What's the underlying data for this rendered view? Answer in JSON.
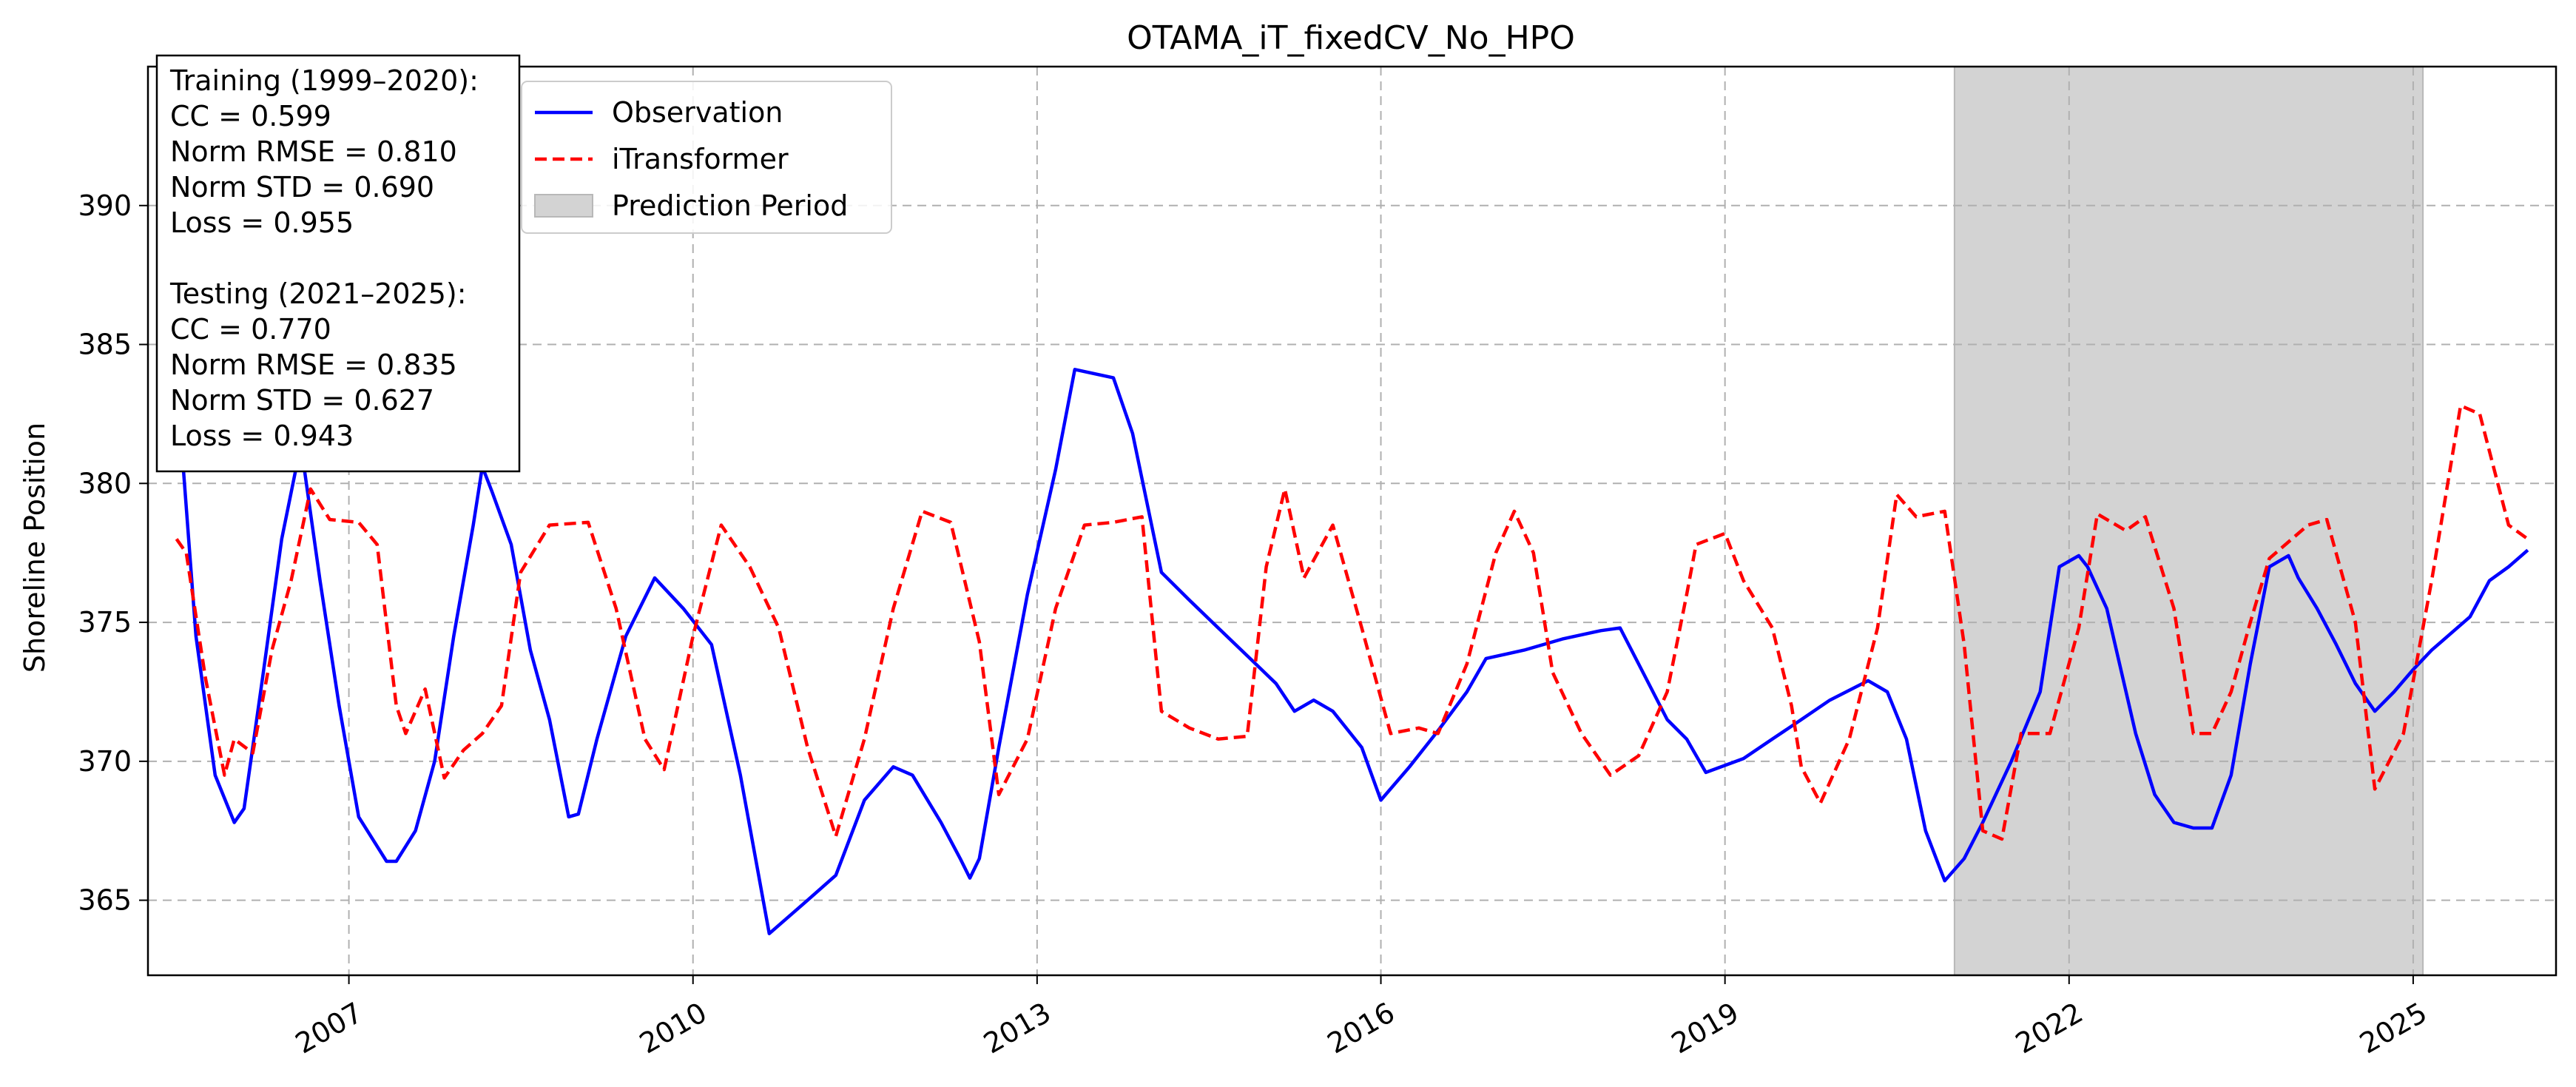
{
  "chart_data": {
    "type": "line",
    "title": "OTAMA_iT_fixedCV_No_HPO",
    "xlabel": "",
    "ylabel": "Shoreline Position",
    "x_range": [
      "2005-04-01",
      "2026-04-01"
    ],
    "ylim": [
      362.3,
      395.0
    ],
    "x_ticks": [
      "2007",
      "2010",
      "2013",
      "2016",
      "2019",
      "2022",
      "2025"
    ],
    "y_ticks": [
      365,
      370,
      375,
      380,
      385,
      390
    ],
    "grid": true,
    "legend_position": "upper left",
    "legend": [
      "Observation",
      "iTransformer",
      "Prediction Period"
    ],
    "shaded_region": {
      "label": "Prediction Period",
      "start": "2021-01-01",
      "end": "2025-02-01",
      "color": "#d3d3d3"
    },
    "stats_box": [
      "Training (1999–2020):",
      "CC = 0.599",
      "Norm RMSE = 0.810",
      "Norm STD = 0.690",
      "Loss = 0.955",
      "",
      "Testing (2021–2025):",
      "CC = 0.770",
      "Norm RMSE = 0.835",
      "Norm STD = 0.627",
      "Loss = 0.943"
    ],
    "series": [
      {
        "name": "Observation",
        "color": "#0000ff",
        "style": "solid",
        "points": [
          [
            "2005-07-01",
            383.8
          ],
          [
            "2005-09-01",
            374.5
          ],
          [
            "2005-11-01",
            369.5
          ],
          [
            "2006-01-01",
            367.8
          ],
          [
            "2006-02-01",
            368.3
          ],
          [
            "2006-04-01",
            373.0
          ],
          [
            "2006-06-01",
            378.0
          ],
          [
            "2006-08-01",
            381.4
          ],
          [
            "2006-10-01",
            376.5
          ],
          [
            "2006-12-01",
            372.0
          ],
          [
            "2007-02-01",
            368.0
          ],
          [
            "2007-05-01",
            366.4
          ],
          [
            "2007-06-01",
            366.4
          ],
          [
            "2007-08-01",
            367.5
          ],
          [
            "2007-10-01",
            370.0
          ],
          [
            "2007-12-01",
            374.5
          ],
          [
            "2008-02-01",
            378.5
          ],
          [
            "2008-03-01",
            380.6
          ],
          [
            "2008-04-01",
            379.7
          ],
          [
            "2008-06-01",
            377.8
          ],
          [
            "2008-08-01",
            374.0
          ],
          [
            "2008-10-01",
            371.5
          ],
          [
            "2008-12-01",
            368.0
          ],
          [
            "2009-01-01",
            368.1
          ],
          [
            "2009-03-01",
            370.8
          ],
          [
            "2009-06-01",
            374.5
          ],
          [
            "2009-09-01",
            376.6
          ],
          [
            "2009-12-01",
            375.5
          ],
          [
            "2010-03-01",
            374.2
          ],
          [
            "2010-06-01",
            369.5
          ],
          [
            "2010-09-01",
            363.8
          ],
          [
            "2011-01-01",
            365.0
          ],
          [
            "2011-04-01",
            365.9
          ],
          [
            "2011-07-01",
            368.6
          ],
          [
            "2011-10-01",
            369.8
          ],
          [
            "2011-12-01",
            369.5
          ],
          [
            "2012-03-01",
            367.8
          ],
          [
            "2012-05-01",
            366.5
          ],
          [
            "2012-06-01",
            365.8
          ],
          [
            "2012-07-01",
            366.5
          ],
          [
            "2012-09-01",
            370.5
          ],
          [
            "2012-12-01",
            376.0
          ],
          [
            "2013-03-01",
            380.5
          ],
          [
            "2013-05-01",
            384.1
          ],
          [
            "2013-09-01",
            383.8
          ],
          [
            "2013-11-01",
            381.8
          ],
          [
            "2014-02-01",
            376.8
          ],
          [
            "2014-05-01",
            375.8
          ],
          [
            "2014-08-01",
            374.8
          ],
          [
            "2014-11-01",
            373.8
          ],
          [
            "2015-02-01",
            372.8
          ],
          [
            "2015-04-01",
            371.8
          ],
          [
            "2015-06-01",
            372.2
          ],
          [
            "2015-08-01",
            371.8
          ],
          [
            "2015-11-01",
            370.5
          ],
          [
            "2016-01-01",
            368.6
          ],
          [
            "2016-04-01",
            369.8
          ],
          [
            "2016-07-01",
            371.1
          ],
          [
            "2016-10-01",
            372.5
          ],
          [
            "2016-12-01",
            373.7
          ],
          [
            "2017-04-01",
            374.0
          ],
          [
            "2017-08-01",
            374.4
          ],
          [
            "2017-12-01",
            374.7
          ],
          [
            "2018-02-01",
            374.8
          ],
          [
            "2018-04-01",
            373.5
          ],
          [
            "2018-07-01",
            371.5
          ],
          [
            "2018-09-01",
            370.8
          ],
          [
            "2018-11-01",
            369.6
          ],
          [
            "2019-03-01",
            370.1
          ],
          [
            "2019-06-01",
            370.8
          ],
          [
            "2019-09-01",
            371.5
          ],
          [
            "2019-12-01",
            372.2
          ],
          [
            "2020-04-01",
            372.9
          ],
          [
            "2020-06-01",
            372.5
          ],
          [
            "2020-08-01",
            370.8
          ],
          [
            "2020-10-01",
            367.5
          ],
          [
            "2020-12-01",
            365.7
          ],
          [
            "2021-02-01",
            366.5
          ],
          [
            "2021-04-01",
            367.8
          ],
          [
            "2021-07-01",
            370.0
          ],
          [
            "2021-10-01",
            372.5
          ],
          [
            "2021-12-01",
            377.0
          ],
          [
            "2022-02-01",
            377.4
          ],
          [
            "2022-03-01",
            377.0
          ],
          [
            "2022-05-01",
            375.5
          ],
          [
            "2022-08-01",
            371.0
          ],
          [
            "2022-10-01",
            368.8
          ],
          [
            "2022-12-01",
            367.8
          ],
          [
            "2023-02-01",
            367.6
          ],
          [
            "2023-04-01",
            367.6
          ],
          [
            "2023-06-01",
            369.5
          ],
          [
            "2023-08-01",
            373.5
          ],
          [
            "2023-10-01",
            377.0
          ],
          [
            "2023-12-01",
            377.4
          ],
          [
            "2024-01-01",
            376.6
          ],
          [
            "2024-03-01",
            375.5
          ],
          [
            "2024-05-01",
            374.2
          ],
          [
            "2024-07-01",
            372.8
          ],
          [
            "2024-09-01",
            371.8
          ],
          [
            "2024-11-01",
            372.5
          ],
          [
            "2025-01-01",
            373.3
          ],
          [
            "2025-03-01",
            374.0
          ],
          [
            "2025-05-01",
            374.6
          ],
          [
            "2025-07-01",
            375.2
          ],
          [
            "2025-09-01",
            376.5
          ],
          [
            "2025-11-01",
            377.0
          ],
          [
            "2026-01-01",
            377.6
          ]
        ]
      },
      {
        "name": "iTransformer",
        "color": "#ff0000",
        "style": "dashed",
        "points": [
          [
            "2005-07-01",
            378.0
          ],
          [
            "2005-08-01",
            377.5
          ],
          [
            "2005-10-01",
            373.0
          ],
          [
            "2005-12-01",
            369.5
          ],
          [
            "2006-01-01",
            370.8
          ],
          [
            "2006-03-01",
            370.3
          ],
          [
            "2006-05-01",
            374.0
          ],
          [
            "2006-07-01",
            376.5
          ],
          [
            "2006-09-01",
            379.8
          ],
          [
            "2006-11-01",
            378.7
          ],
          [
            "2007-02-01",
            378.6
          ],
          [
            "2007-04-01",
            377.8
          ],
          [
            "2007-06-01",
            372.0
          ],
          [
            "2007-07-01",
            371.0
          ],
          [
            "2007-09-01",
            372.6
          ],
          [
            "2007-11-01",
            369.4
          ],
          [
            "2008-01-01",
            370.4
          ],
          [
            "2008-03-01",
            371.0
          ],
          [
            "2008-05-01",
            372.0
          ],
          [
            "2008-07-01",
            376.8
          ],
          [
            "2008-10-01",
            378.5
          ],
          [
            "2009-02-01",
            378.6
          ],
          [
            "2009-05-01",
            375.5
          ],
          [
            "2009-08-01",
            370.8
          ],
          [
            "2009-10-01",
            369.7
          ],
          [
            "2010-01-01",
            374.5
          ],
          [
            "2010-04-01",
            378.5
          ],
          [
            "2010-07-01",
            377.0
          ],
          [
            "2010-10-01",
            374.8
          ],
          [
            "2011-01-01",
            370.5
          ],
          [
            "2011-04-01",
            367.3
          ],
          [
            "2011-07-01",
            370.8
          ],
          [
            "2011-10-01",
            375.5
          ],
          [
            "2012-01-01",
            379.0
          ],
          [
            "2012-04-01",
            378.6
          ],
          [
            "2012-07-01",
            374.3
          ],
          [
            "2012-09-01",
            368.8
          ],
          [
            "2012-12-01",
            370.8
          ],
          [
            "2013-03-01",
            375.5
          ],
          [
            "2013-06-01",
            378.5
          ],
          [
            "2013-09-01",
            378.6
          ],
          [
            "2013-12-01",
            378.8
          ],
          [
            "2014-02-01",
            371.8
          ],
          [
            "2014-05-01",
            371.2
          ],
          [
            "2014-08-01",
            370.8
          ],
          [
            "2014-11-01",
            370.9
          ],
          [
            "2015-01-01",
            377.0
          ],
          [
            "2015-03-01",
            379.8
          ],
          [
            "2015-05-01",
            376.6
          ],
          [
            "2015-08-01",
            378.5
          ],
          [
            "2015-11-01",
            374.8
          ],
          [
            "2016-02-01",
            371.0
          ],
          [
            "2016-05-01",
            371.2
          ],
          [
            "2016-07-01",
            371.0
          ],
          [
            "2016-10-01",
            373.5
          ],
          [
            "2017-01-01",
            377.5
          ],
          [
            "2017-03-01",
            379.0
          ],
          [
            "2017-05-01",
            377.5
          ],
          [
            "2017-07-01",
            373.2
          ],
          [
            "2017-10-01",
            371.0
          ],
          [
            "2018-01-01",
            369.5
          ],
          [
            "2018-04-01",
            370.2
          ],
          [
            "2018-07-01",
            372.5
          ],
          [
            "2018-09-01",
            376.0
          ],
          [
            "2018-10-01",
            377.8
          ],
          [
            "2019-01-01",
            378.2
          ],
          [
            "2019-03-01",
            376.5
          ],
          [
            "2019-06-01",
            374.8
          ],
          [
            "2019-08-01",
            372.0
          ],
          [
            "2019-09-01",
            369.8
          ],
          [
            "2019-11-01",
            368.5
          ],
          [
            "2020-02-01",
            370.8
          ],
          [
            "2020-05-01",
            374.8
          ],
          [
            "2020-07-01",
            379.6
          ],
          [
            "2020-09-01",
            378.8
          ],
          [
            "2020-12-01",
            379.0
          ],
          [
            "2021-02-01",
            374.2
          ],
          [
            "2021-04-01",
            367.5
          ],
          [
            "2021-06-01",
            367.2
          ],
          [
            "2021-08-01",
            371.0
          ],
          [
            "2021-11-01",
            371.0
          ],
          [
            "2022-02-01",
            374.8
          ],
          [
            "2022-04-01",
            378.9
          ],
          [
            "2022-07-01",
            378.3
          ],
          [
            "2022-09-01",
            378.8
          ],
          [
            "2022-12-01",
            375.5
          ],
          [
            "2023-02-01",
            371.0
          ],
          [
            "2023-04-01",
            371.0
          ],
          [
            "2023-06-01",
            372.5
          ],
          [
            "2023-08-01",
            375.0
          ],
          [
            "2023-10-01",
            377.3
          ],
          [
            "2024-02-01",
            378.5
          ],
          [
            "2024-04-01",
            378.7
          ],
          [
            "2024-07-01",
            375.0
          ],
          [
            "2024-09-01",
            369.0
          ],
          [
            "2024-12-01",
            371.0
          ],
          [
            "2025-03-01",
            376.5
          ],
          [
            "2025-06-01",
            382.8
          ],
          [
            "2025-08-01",
            382.5
          ],
          [
            "2025-11-01",
            378.5
          ],
          [
            "2026-01-01",
            378.0
          ]
        ]
      }
    ]
  }
}
